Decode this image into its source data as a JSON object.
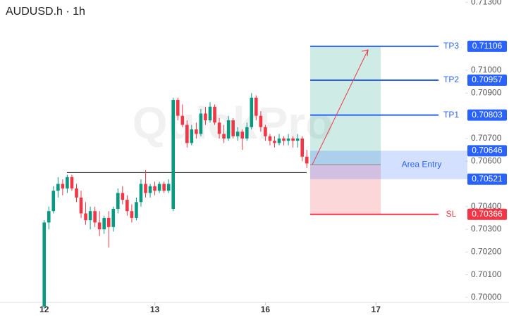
{
  "chart_data": {
    "type": "candlestick",
    "title": "AUDUSD.h · 1h",
    "watermark": "QuickPro",
    "up_color": "#089981",
    "down_color": "#f23645",
    "ylim": [
      0.69978,
      0.7131
    ],
    "xlim": [
      -9.6,
      91.4
    ],
    "yticks": [
      {
        "value": 0.713,
        "label": "0.71300"
      },
      {
        "value": 0.71,
        "label": "0.71000"
      },
      {
        "value": 0.709,
        "label": "0.70900"
      },
      {
        "value": 0.707,
        "label": "0.70700"
      },
      {
        "value": 0.706,
        "label": "0.70600"
      },
      {
        "value": 0.704,
        "label": "0.70400"
      },
      {
        "value": 0.703,
        "label": "0.70300"
      },
      {
        "value": 0.702,
        "label": "0.70200"
      },
      {
        "value": 0.701,
        "label": "0.70100"
      },
      {
        "value": 0.7,
        "label": "0.70000"
      }
    ],
    "xticks": [
      {
        "value": 0,
        "label": "12"
      },
      {
        "value": 24,
        "label": "13"
      },
      {
        "value": 48,
        "label": "16"
      },
      {
        "value": 72,
        "label": "17"
      }
    ],
    "x": [
      0,
      1,
      2,
      3,
      4,
      5,
      6,
      7,
      8,
      9,
      10,
      11,
      12,
      13,
      14,
      15,
      16,
      17,
      18,
      19,
      20,
      21,
      22,
      23,
      24,
      25,
      26,
      27,
      28,
      29,
      30,
      31,
      32,
      33,
      34,
      35,
      36,
      37,
      38,
      39,
      40,
      41,
      42,
      43,
      44,
      45,
      46,
      47,
      48,
      49,
      50,
      51,
      52,
      53,
      54,
      55,
      56,
      57
    ],
    "open": [
      0.6996,
      0.7033,
      0.7038,
      0.7047,
      0.705,
      0.7048,
      0.7053,
      0.7048,
      0.7044,
      0.7037,
      0.7034,
      0.7038,
      0.7033,
      0.703,
      0.7035,
      0.7031,
      0.7039,
      0.7046,
      0.7043,
      0.7038,
      0.7035,
      0.7042,
      0.705,
      0.7046,
      0.7049,
      0.7047,
      0.705,
      0.7047,
      0.7039,
      0.7087,
      0.708,
      0.7076,
      0.7068,
      0.7074,
      0.7072,
      0.7081,
      0.7078,
      0.7084,
      0.7077,
      0.7072,
      0.707,
      0.7078,
      0.7071,
      0.7073,
      0.707,
      0.7075,
      0.7088,
      0.708,
      0.7075,
      0.7071,
      0.7069,
      0.7068,
      0.707,
      0.7069,
      0.707,
      0.7069,
      0.707,
      0.7062
    ],
    "high": [
      0.7034,
      0.704,
      0.7049,
      0.7053,
      0.7052,
      0.7054,
      0.7054,
      0.705,
      0.7047,
      0.7042,
      0.704,
      0.704,
      0.7038,
      0.7036,
      0.7038,
      0.704,
      0.7048,
      0.7049,
      0.7045,
      0.7041,
      0.7044,
      0.7052,
      0.7056,
      0.705,
      0.7051,
      0.7051,
      0.7051,
      0.7052,
      0.7088,
      0.7088,
      0.7085,
      0.7078,
      0.7076,
      0.7077,
      0.7083,
      0.7084,
      0.7086,
      0.7085,
      0.7079,
      0.7076,
      0.708,
      0.7079,
      0.7075,
      0.7074,
      0.7077,
      0.709,
      0.7089,
      0.7082,
      0.7076,
      0.7072,
      0.7071,
      0.7072,
      0.7071,
      0.7072,
      0.7071,
      0.7072,
      0.7071,
      0.7065
    ],
    "low": [
      0.6995,
      0.703,
      0.7037,
      0.7044,
      0.7045,
      0.7046,
      0.7047,
      0.7042,
      0.7035,
      0.7032,
      0.703,
      0.7031,
      0.7027,
      0.7028,
      0.7022,
      0.7029,
      0.7037,
      0.7041,
      0.7036,
      0.7033,
      0.7034,
      0.704,
      0.7044,
      0.7044,
      0.7045,
      0.7046,
      0.7046,
      0.7046,
      0.7038,
      0.7078,
      0.7075,
      0.7066,
      0.7067,
      0.707,
      0.7071,
      0.7076,
      0.7077,
      0.7076,
      0.707,
      0.7068,
      0.7069,
      0.707,
      0.7069,
      0.7065,
      0.7069,
      0.7074,
      0.7078,
      0.7073,
      0.7069,
      0.7067,
      0.7066,
      0.7067,
      0.7067,
      0.7067,
      0.7066,
      0.7066,
      0.706,
      0.7057
    ],
    "close": [
      0.7033,
      0.7038,
      0.7047,
      0.705,
      0.7048,
      0.7053,
      0.7048,
      0.7044,
      0.7037,
      0.7034,
      0.7038,
      0.7033,
      0.703,
      0.7035,
      0.7031,
      0.7039,
      0.7046,
      0.7043,
      0.7038,
      0.7035,
      0.7042,
      0.705,
      0.7046,
      0.7049,
      0.7047,
      0.705,
      0.7047,
      0.705,
      0.7087,
      0.708,
      0.7076,
      0.7068,
      0.7074,
      0.7072,
      0.7081,
      0.7078,
      0.7084,
      0.7077,
      0.7072,
      0.707,
      0.7078,
      0.7071,
      0.7073,
      0.707,
      0.7075,
      0.7088,
      0.708,
      0.7075,
      0.7071,
      0.7069,
      0.7068,
      0.707,
      0.7069,
      0.707,
      0.7069,
      0.707,
      0.7062,
      0.7059
    ],
    "support_line": 0.7055,
    "levels": [
      {
        "name": "TP3",
        "value": 0.71106,
        "color": "#2962ff"
      },
      {
        "name": "TP2",
        "value": 0.70957,
        "color": "#2962ff"
      },
      {
        "name": "TP1",
        "value": 0.70803,
        "color": "#2962ff"
      },
      {
        "name": "SL",
        "value": 0.70366,
        "color": "#f23645"
      }
    ],
    "area_entry": {
      "label": "Area Entry",
      "top": 0.70646,
      "bottom": 0.70521,
      "color": "#2962ff"
    },
    "entry": 0.70585
  }
}
